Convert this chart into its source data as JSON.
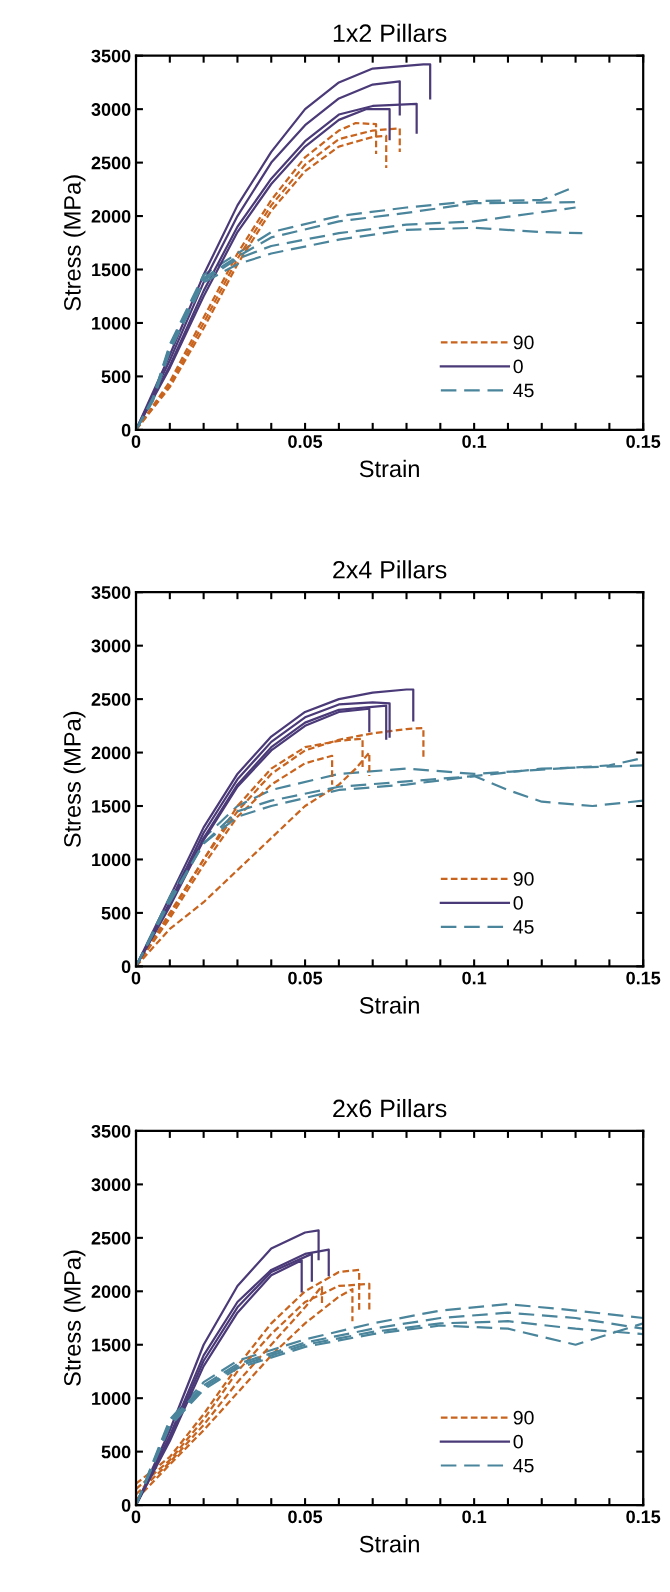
{
  "chart_data": [
    {
      "type": "line",
      "title": "1x2 Pillars",
      "xlabel": "Strain",
      "ylabel": "Stress (MPa)",
      "xlim": [
        0,
        0.15
      ],
      "ylim": [
        0,
        3500
      ],
      "xticks": [
        0,
        {
          "value": 0.01,
          "label": null
        },
        {
          "value": 0.02,
          "label": null
        },
        {
          "value": 0.03,
          "label": null
        },
        {
          "value": 0.04,
          "label": null
        },
        0.05,
        {
          "value": 0.06,
          "label": null
        },
        {
          "value": 0.07,
          "label": null
        },
        {
          "value": 0.08,
          "label": null
        },
        {
          "value": 0.09,
          "label": null
        },
        0.1,
        {
          "value": 0.11,
          "label": null
        },
        {
          "value": 0.12,
          "label": null
        },
        {
          "value": 0.13,
          "label": null
        },
        {
          "value": 0.14,
          "label": null
        },
        0.15
      ],
      "yticks": [
        0,
        500,
        1000,
        1500,
        2000,
        2500,
        3000,
        3500
      ],
      "grid": false,
      "legend": "bottom right",
      "marker": "none",
      "series": [
        {
          "name": "90",
          "color": "#c8641e",
          "line_style": "dotted",
          "x": [
            0,
            0.01,
            0.02,
            0.03,
            0.04,
            0.05,
            0.06,
            0.065,
            0.071,
            0.071
          ],
          "values": [
            0,
            450,
            1050,
            1650,
            2150,
            2550,
            2800,
            2870,
            2860,
            2580
          ]
        },
        {
          "name": "0",
          "color": "#4b3a78",
          "line_style": "solid",
          "x": [
            0,
            0.01,
            0.02,
            0.03,
            0.04,
            0.05,
            0.06,
            0.07,
            0.085,
            0.087,
            0.087
          ],
          "values": [
            0,
            700,
            1450,
            2100,
            2600,
            3000,
            3250,
            3380,
            3420,
            3420,
            3100
          ]
        },
        {
          "name": "45",
          "color": "#4a859c",
          "line_style": "dashed",
          "x": [
            0,
            0.005,
            0.01,
            0.02,
            0.03,
            0.04,
            0.06,
            0.08,
            0.1,
            0.12,
            0.128
          ],
          "values": [
            0,
            300,
            800,
            1450,
            1650,
            1850,
            2000,
            2080,
            2140,
            2150,
            2250
          ]
        },
        {
          "color": "#c8641e",
          "line_style": "dotted",
          "x": [
            0,
            0.01,
            0.02,
            0.03,
            0.04,
            0.05,
            0.06,
            0.07,
            0.078,
            0.078
          ],
          "values": [
            0,
            420,
            1000,
            1600,
            2100,
            2480,
            2720,
            2800,
            2820,
            2600
          ]
        },
        {
          "color": "#c8641e",
          "line_style": "dotted",
          "x": [
            0,
            0.01,
            0.02,
            0.03,
            0.04,
            0.05,
            0.06,
            0.07,
            0.074,
            0.074
          ],
          "values": [
            0,
            400,
            950,
            1550,
            2050,
            2420,
            2650,
            2740,
            2750,
            2450
          ]
        },
        {
          "color": "#4b3a78",
          "line_style": "solid",
          "x": [
            0,
            0.01,
            0.02,
            0.03,
            0.04,
            0.05,
            0.06,
            0.07,
            0.078,
            0.078
          ],
          "values": [
            0,
            650,
            1380,
            2000,
            2500,
            2850,
            3100,
            3230,
            3260,
            2950
          ]
        },
        {
          "color": "#4b3a78",
          "line_style": "solid",
          "x": [
            0,
            0.01,
            0.02,
            0.03,
            0.04,
            0.05,
            0.06,
            0.07,
            0.083,
            0.083
          ],
          "values": [
            0,
            600,
            1300,
            1900,
            2350,
            2700,
            2950,
            3030,
            3050,
            2780
          ]
        },
        {
          "color": "#4b3a78",
          "line_style": "solid",
          "x": [
            0,
            0.01,
            0.02,
            0.03,
            0.04,
            0.05,
            0.06,
            0.068,
            0.075,
            0.075
          ],
          "values": [
            0,
            580,
            1250,
            1850,
            2300,
            2650,
            2900,
            3000,
            3000,
            2720
          ]
        },
        {
          "color": "#4a859c",
          "line_style": "dashed",
          "x": [
            0,
            0.005,
            0.01,
            0.02,
            0.03,
            0.04,
            0.06,
            0.08,
            0.1,
            0.13
          ],
          "values": [
            0,
            300,
            780,
            1420,
            1620,
            1800,
            1950,
            2030,
            2120,
            2130
          ]
        },
        {
          "color": "#4a859c",
          "line_style": "dashed",
          "x": [
            0,
            0.005,
            0.01,
            0.02,
            0.03,
            0.04,
            0.06,
            0.08,
            0.1,
            0.13
          ],
          "values": [
            0,
            280,
            760,
            1400,
            1600,
            1720,
            1840,
            1920,
            1950,
            2080
          ]
        },
        {
          "color": "#4a859c",
          "line_style": "dashed",
          "x": [
            0,
            0.005,
            0.01,
            0.02,
            0.03,
            0.04,
            0.06,
            0.08,
            0.1,
            0.12,
            0.132
          ],
          "values": [
            0,
            270,
            740,
            1380,
            1550,
            1650,
            1780,
            1870,
            1890,
            1850,
            1840
          ]
        }
      ]
    },
    {
      "type": "line",
      "title": "2x4 Pillars",
      "xlabel": "Strain",
      "ylabel": "Stress (MPa)",
      "xlim": [
        0,
        0.15
      ],
      "ylim": [
        0,
        3500
      ],
      "xticks": [
        0,
        {
          "value": 0.01,
          "label": null
        },
        {
          "value": 0.02,
          "label": null
        },
        {
          "value": 0.03,
          "label": null
        },
        {
          "value": 0.04,
          "label": null
        },
        0.05,
        {
          "value": 0.06,
          "label": null
        },
        {
          "value": 0.07,
          "label": null
        },
        {
          "value": 0.08,
          "label": null
        },
        {
          "value": 0.09,
          "label": null
        },
        0.1,
        {
          "value": 0.11,
          "label": null
        },
        {
          "value": 0.12,
          "label": null
        },
        {
          "value": 0.13,
          "label": null
        },
        {
          "value": 0.14,
          "label": null
        },
        0.15
      ],
      "yticks": [
        0,
        500,
        1000,
        1500,
        2000,
        2500,
        3000,
        3500
      ],
      "grid": false,
      "legend": "bottom right",
      "marker": "none",
      "series": [
        {
          "name": "90",
          "color": "#c8641e",
          "line_style": "dotted",
          "x": [
            0,
            0.01,
            0.02,
            0.03,
            0.04,
            0.05,
            0.06,
            0.07,
            0.08,
            0.085,
            0.085
          ],
          "values": [
            0,
            500,
            1000,
            1450,
            1800,
            2020,
            2120,
            2180,
            2220,
            2230,
            1950
          ]
        },
        {
          "name": "0",
          "color": "#4b3a78",
          "line_style": "solid",
          "x": [
            0,
            0.01,
            0.02,
            0.03,
            0.04,
            0.05,
            0.06,
            0.07,
            0.08,
            0.082,
            0.082
          ],
          "values": [
            0,
            650,
            1300,
            1800,
            2150,
            2380,
            2500,
            2560,
            2590,
            2590,
            2300
          ]
        },
        {
          "name": "45",
          "color": "#4a859c",
          "line_style": "dashed",
          "x": [
            0,
            0.01,
            0.02,
            0.03,
            0.04,
            0.06,
            0.08,
            0.1,
            0.12,
            0.14,
            0.15
          ],
          "values": [
            0,
            650,
            1200,
            1500,
            1650,
            1800,
            1850,
            1800,
            1840,
            1880,
            1950
          ]
        },
        {
          "color": "#c8641e",
          "line_style": "dotted",
          "x": [
            0,
            0.01,
            0.02,
            0.03,
            0.04,
            0.05,
            0.06,
            0.067,
            0.067
          ],
          "values": [
            0,
            480,
            1000,
            1500,
            1850,
            2050,
            2110,
            2130,
            1850
          ]
        },
        {
          "color": "#c8641e",
          "line_style": "dotted",
          "x": [
            0,
            0.01,
            0.02,
            0.03,
            0.04,
            0.05,
            0.058,
            0.058
          ],
          "values": [
            0,
            450,
            950,
            1400,
            1700,
            1900,
            1970,
            1700
          ]
        },
        {
          "color": "#c8641e",
          "line_style": "dotted",
          "x": [
            0,
            0.01,
            0.02,
            0.03,
            0.04,
            0.05,
            0.06,
            0.065,
            0.069,
            0.069
          ],
          "values": [
            0,
            350,
            600,
            900,
            1200,
            1500,
            1700,
            1850,
            2000,
            1780
          ]
        },
        {
          "color": "#4b3a78",
          "line_style": "solid",
          "x": [
            0,
            0.01,
            0.02,
            0.03,
            0.04,
            0.05,
            0.06,
            0.07,
            0.075,
            0.075
          ],
          "values": [
            0,
            600,
            1250,
            1750,
            2100,
            2330,
            2450,
            2470,
            2460,
            2150
          ]
        },
        {
          "color": "#4b3a78",
          "line_style": "solid",
          "x": [
            0,
            0.01,
            0.02,
            0.03,
            0.04,
            0.05,
            0.06,
            0.074,
            0.074
          ],
          "values": [
            0,
            580,
            1200,
            1700,
            2050,
            2280,
            2400,
            2440,
            2130
          ]
        },
        {
          "color": "#4b3a78",
          "line_style": "solid",
          "x": [
            0,
            0.01,
            0.02,
            0.03,
            0.04,
            0.05,
            0.06,
            0.069,
            0.069
          ],
          "values": [
            0,
            560,
            1180,
            1680,
            2020,
            2250,
            2380,
            2410,
            2200
          ]
        },
        {
          "color": "#4a859c",
          "line_style": "dashed",
          "x": [
            0,
            0.01,
            0.02,
            0.03,
            0.04,
            0.06,
            0.08,
            0.1,
            0.12,
            0.15
          ],
          "values": [
            0,
            620,
            1150,
            1450,
            1550,
            1680,
            1730,
            1780,
            1850,
            1880
          ]
        },
        {
          "color": "#4a859c",
          "line_style": "dashed",
          "x": [
            0,
            0.01,
            0.02,
            0.03,
            0.04,
            0.06,
            0.08,
            0.1,
            0.11,
            0.12,
            0.135,
            0.15
          ],
          "values": [
            0,
            600,
            1150,
            1400,
            1500,
            1650,
            1700,
            1780,
            1650,
            1540,
            1500,
            1550
          ]
        }
      ]
    },
    {
      "type": "line",
      "title": "2x6 Pillars",
      "xlabel": "Strain",
      "ylabel": "Stress (MPa)",
      "xlim": [
        0,
        0.15
      ],
      "ylim": [
        0,
        3500
      ],
      "xticks": [
        0,
        {
          "value": 0.01,
          "label": null
        },
        {
          "value": 0.02,
          "label": null
        },
        {
          "value": 0.03,
          "label": null
        },
        {
          "value": 0.04,
          "label": null
        },
        0.05,
        {
          "value": 0.06,
          "label": null
        },
        {
          "value": 0.07,
          "label": null
        },
        {
          "value": 0.08,
          "label": null
        },
        {
          "value": 0.09,
          "label": null
        },
        0.1,
        {
          "value": 0.11,
          "label": null
        },
        {
          "value": 0.12,
          "label": null
        },
        {
          "value": 0.13,
          "label": null
        },
        {
          "value": 0.14,
          "label": null
        },
        0.15
      ],
      "yticks": [
        0,
        500,
        1000,
        1500,
        2000,
        2500,
        3000,
        3500
      ],
      "grid": false,
      "legend": "bottom right",
      "marker": "none",
      "series": [
        {
          "name": "90",
          "color": "#c8641e",
          "line_style": "dotted",
          "x": [
            0,
            0.01,
            0.02,
            0.03,
            0.04,
            0.05,
            0.06,
            0.066,
            0.066
          ],
          "values": [
            200,
            450,
            850,
            1300,
            1700,
            2000,
            2180,
            2200,
            1800
          ]
        },
        {
          "name": "0",
          "color": "#4b3a78",
          "line_style": "solid",
          "x": [
            0,
            0.01,
            0.02,
            0.03,
            0.04,
            0.05,
            0.054,
            0.054
          ],
          "values": [
            0,
            700,
            1500,
            2050,
            2400,
            2550,
            2570,
            2300
          ]
        },
        {
          "name": "45",
          "color": "#4a859c",
          "line_style": "dashed",
          "x": [
            0,
            0.01,
            0.02,
            0.03,
            0.05,
            0.07,
            0.09,
            0.11,
            0.13,
            0.15
          ],
          "values": [
            0,
            800,
            1150,
            1350,
            1550,
            1700,
            1820,
            1880,
            1820,
            1750
          ]
        },
        {
          "color": "#c8641e",
          "line_style": "dotted",
          "x": [
            0,
            0.01,
            0.02,
            0.03,
            0.04,
            0.05,
            0.06,
            0.069,
            0.069
          ],
          "values": [
            150,
            420,
            800,
            1250,
            1600,
            1900,
            2050,
            2070,
            1800
          ]
        },
        {
          "color": "#c8641e",
          "line_style": "dotted",
          "x": [
            0,
            0.01,
            0.02,
            0.03,
            0.04,
            0.05,
            0.055,
            0.055
          ],
          "values": [
            100,
            400,
            750,
            1150,
            1500,
            1850,
            2050,
            1880
          ]
        },
        {
          "color": "#c8641e",
          "line_style": "dotted",
          "x": [
            0,
            0.01,
            0.02,
            0.03,
            0.04,
            0.05,
            0.06,
            0.064,
            0.064
          ],
          "values": [
            50,
            380,
            700,
            1050,
            1400,
            1700,
            1950,
            2020,
            1720
          ]
        },
        {
          "color": "#4b3a78",
          "line_style": "solid",
          "x": [
            0,
            0.01,
            0.02,
            0.03,
            0.04,
            0.05,
            0.057,
            0.057
          ],
          "values": [
            0,
            650,
            1400,
            1900,
            2200,
            2350,
            2390,
            2150
          ]
        },
        {
          "color": "#4b3a78",
          "line_style": "solid",
          "x": [
            0,
            0.01,
            0.02,
            0.03,
            0.04,
            0.052,
            0.052
          ],
          "values": [
            0,
            620,
            1350,
            1850,
            2180,
            2350,
            2100
          ]
        },
        {
          "color": "#4b3a78",
          "line_style": "solid",
          "x": [
            0,
            0.01,
            0.02,
            0.03,
            0.04,
            0.049,
            0.049
          ],
          "values": [
            0,
            600,
            1300,
            1800,
            2150,
            2290,
            2000
          ]
        },
        {
          "color": "#4a859c",
          "line_style": "dashed",
          "x": [
            0,
            0.01,
            0.02,
            0.03,
            0.05,
            0.07,
            0.09,
            0.11,
            0.13,
            0.15
          ],
          "values": [
            0,
            780,
            1120,
            1320,
            1520,
            1650,
            1750,
            1800,
            1750,
            1650
          ]
        },
        {
          "color": "#4a859c",
          "line_style": "dashed",
          "x": [
            0,
            0.01,
            0.02,
            0.03,
            0.05,
            0.07,
            0.09,
            0.11,
            0.13,
            0.15
          ],
          "values": [
            0,
            760,
            1100,
            1300,
            1500,
            1620,
            1700,
            1720,
            1650,
            1600
          ]
        },
        {
          "color": "#4a859c",
          "line_style": "dashed",
          "x": [
            0,
            0.01,
            0.02,
            0.03,
            0.05,
            0.07,
            0.09,
            0.11,
            0.13,
            0.15
          ],
          "values": [
            0,
            740,
            1080,
            1280,
            1480,
            1600,
            1680,
            1650,
            1500,
            1700
          ]
        }
      ]
    }
  ]
}
